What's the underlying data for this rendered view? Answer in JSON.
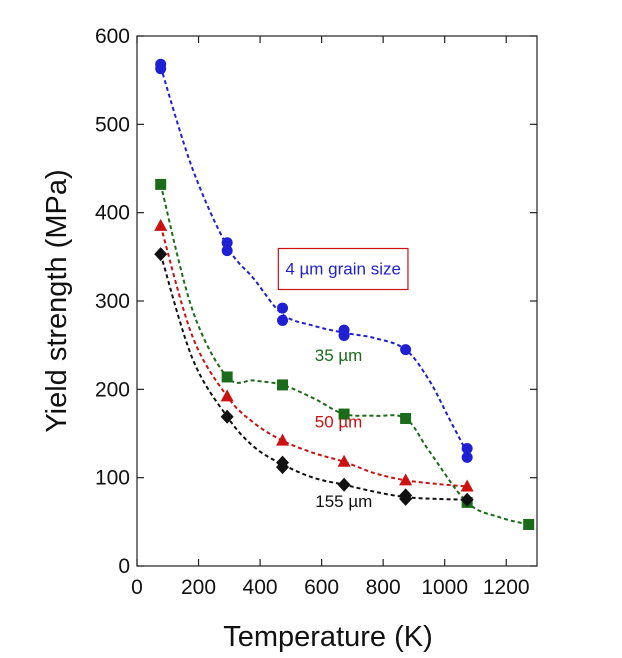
{
  "chart_data": {
    "type": "scatter",
    "title": "",
    "xlabel": "Temperature (K)",
    "ylabel": "Yield strength (MPa)",
    "xlim": [
      0,
      1300
    ],
    "ylim": [
      0,
      600
    ],
    "grid": false,
    "x_ticks": [
      "0",
      "200",
      "400",
      "600",
      "800",
      "1000",
      "1200"
    ],
    "y_ticks": [
      "0",
      "100",
      "200",
      "300",
      "400",
      "500",
      "600"
    ],
    "series": [
      {
        "name": "4 µm grain size",
        "color": "#1f1fd6",
        "marker": "circle",
        "points": [
          [
            77,
            568
          ],
          [
            77,
            563
          ],
          [
            293,
            366
          ],
          [
            293,
            357
          ],
          [
            473,
            292
          ],
          [
            473,
            278
          ],
          [
            673,
            267
          ],
          [
            673,
            261
          ],
          [
            873,
            245
          ],
          [
            1073,
            133
          ],
          [
            1073,
            123
          ]
        ],
        "curve": [
          [
            77,
            565
          ],
          [
            180,
            450
          ],
          [
            293,
            362
          ],
          [
            380,
            325
          ],
          [
            473,
            285
          ],
          [
            573,
            272
          ],
          [
            673,
            264
          ],
          [
            773,
            258
          ],
          [
            873,
            245
          ],
          [
            950,
            210
          ],
          [
            1010,
            170
          ],
          [
            1073,
            128
          ]
        ]
      },
      {
        "name": "35 µm",
        "color": "#1a6b1a",
        "marker": "square",
        "points": [
          [
            77,
            432
          ],
          [
            293,
            214
          ],
          [
            473,
            205
          ],
          [
            673,
            172
          ],
          [
            873,
            167
          ],
          [
            1073,
            72
          ],
          [
            1273,
            47
          ]
        ],
        "curve": [
          [
            77,
            432
          ],
          [
            180,
            290
          ],
          [
            293,
            214
          ],
          [
            380,
            210
          ],
          [
            473,
            205
          ],
          [
            573,
            190
          ],
          [
            673,
            172
          ],
          [
            773,
            170
          ],
          [
            873,
            167
          ],
          [
            950,
            130
          ],
          [
            1073,
            72
          ],
          [
            1180,
            55
          ],
          [
            1273,
            47
          ]
        ]
      },
      {
        "name": "50 µm",
        "color": "#cc1111",
        "marker": "triangle",
        "points": [
          [
            77,
            385
          ],
          [
            293,
            192
          ],
          [
            473,
            142
          ],
          [
            673,
            118
          ],
          [
            873,
            97
          ],
          [
            1073,
            90
          ]
        ],
        "curve": [
          [
            77,
            385
          ],
          [
            180,
            260
          ],
          [
            293,
            192
          ],
          [
            380,
            162
          ],
          [
            473,
            142
          ],
          [
            573,
            128
          ],
          [
            673,
            118
          ],
          [
            773,
            105
          ],
          [
            873,
            97
          ],
          [
            973,
            93
          ],
          [
            1073,
            90
          ]
        ]
      },
      {
        "name": "155 µm",
        "color": "#111111",
        "marker": "diamond",
        "points": [
          [
            77,
            353
          ],
          [
            293,
            169
          ],
          [
            473,
            117
          ],
          [
            473,
            112
          ],
          [
            673,
            92
          ],
          [
            873,
            80
          ],
          [
            873,
            76
          ],
          [
            1073,
            75
          ]
        ],
        "curve": [
          [
            77,
            353
          ],
          [
            180,
            235
          ],
          [
            293,
            169
          ],
          [
            380,
            135
          ],
          [
            473,
            115
          ],
          [
            573,
            100
          ],
          [
            673,
            92
          ],
          [
            773,
            84
          ],
          [
            873,
            78
          ],
          [
            973,
            76
          ],
          [
            1073,
            75
          ]
        ]
      }
    ],
    "annotations": [
      {
        "text": "4 µm grain size",
        "color": "#1f1fd6",
        "boxed": true,
        "box_color": "#cc1111",
        "x": 670,
        "y": 330
      },
      {
        "text": "35 µm",
        "color": "#1a6b1a",
        "boxed": false,
        "x": 655,
        "y": 232
      },
      {
        "text": "50 µm",
        "color": "#cc1111",
        "boxed": false,
        "x": 655,
        "y": 157
      },
      {
        "text": "155 µm",
        "color": "#111111",
        "boxed": false,
        "x": 672,
        "y": 67
      }
    ]
  }
}
